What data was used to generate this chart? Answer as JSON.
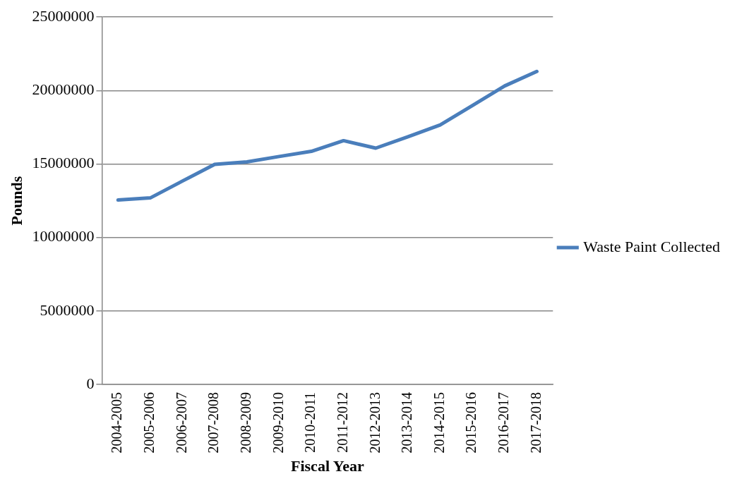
{
  "chart_data": {
    "type": "line",
    "xlabel": "Fiscal Year",
    "ylabel": "Pounds",
    "categories": [
      "2004-2005",
      "2005-2006",
      "2006-2007",
      "2007-2008",
      "2008-2009",
      "2009-2010",
      "2010-2011",
      "2011-2012",
      "2012-2013",
      "2013-2014",
      "2014-2015",
      "2015-2016",
      "2016-2017",
      "2017-2018"
    ],
    "series": [
      {
        "name": "Waste Paint Collected",
        "color": "#4a7ebb",
        "values": [
          12550000,
          12690000,
          13840000,
          14980000,
          15140000,
          15510000,
          15860000,
          16590000,
          16080000,
          16850000,
          17660000,
          18980000,
          20310000,
          21300000
        ]
      }
    ],
    "ylim": [
      0,
      25000000
    ],
    "yticks": [
      0,
      5000000,
      10000000,
      15000000,
      20000000,
      25000000
    ],
    "grid": "y",
    "legend": "right",
    "marker": "none",
    "line_style": "solid"
  }
}
